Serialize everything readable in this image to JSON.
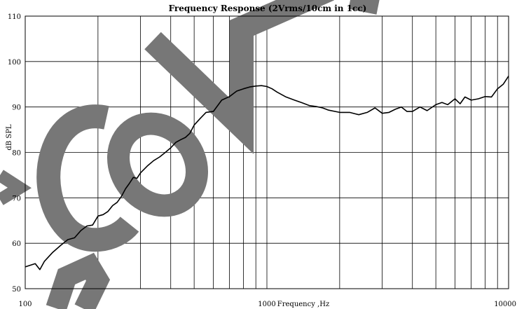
{
  "chart_data": {
    "type": "line",
    "title": "Frequency Response (2Vrms/10cm in 1cc)",
    "xlabel": "Frequency ,Hz",
    "ylabel": "dB SPL",
    "x_scale": "log",
    "xlim": [
      100,
      10000
    ],
    "ylim": [
      50,
      110
    ],
    "x_ticks": [
      100,
      1000,
      10000
    ],
    "x_tick_labels": [
      "100",
      "1000",
      "10000"
    ],
    "y_ticks": [
      50,
      60,
      70,
      80,
      90,
      100,
      110
    ],
    "y_tick_labels": [
      "50",
      "60",
      "70",
      "80",
      "90",
      "100",
      "110"
    ],
    "grid": true,
    "series": [
      {
        "x": [
          100,
          110,
          115,
          120,
          130,
          140,
          150,
          160,
          170,
          180,
          190,
          200,
          210,
          220,
          230,
          240,
          250,
          260,
          270,
          280,
          290,
          300,
          320,
          340,
          360,
          380,
          400,
          420,
          440,
          460,
          480,
          500,
          530,
          560,
          600,
          650,
          700,
          750,
          800,
          850,
          900,
          950,
          1000,
          1050,
          1100,
          1200,
          1300,
          1400,
          1500,
          1600,
          1700,
          1800,
          2000,
          2200,
          2400,
          2600,
          2800,
          3000,
          3200,
          3400,
          3600,
          3800,
          4000,
          4300,
          4600,
          5000,
          5300,
          5600,
          6000,
          6300,
          6600,
          7000,
          7500,
          8000,
          8500,
          9000,
          9500,
          10000
        ],
        "values": [
          54.8,
          55.5,
          54.2,
          56.0,
          58.0,
          59.5,
          60.8,
          61.2,
          62.8,
          63.8,
          64.0,
          66.0,
          66.3,
          67.0,
          68.3,
          69.0,
          70.3,
          72.0,
          73.2,
          74.5,
          74.3,
          75.5,
          77.0,
          78.2,
          79.0,
          80.0,
          81.0,
          82.2,
          82.8,
          83.3,
          84.2,
          86.0,
          87.5,
          88.8,
          89.0,
          91.5,
          92.3,
          93.5,
          94.0,
          94.4,
          94.6,
          94.7,
          94.5,
          94.0,
          93.3,
          92.2,
          91.5,
          90.9,
          90.3,
          90.1,
          89.8,
          89.3,
          88.8,
          88.8,
          88.3,
          88.8,
          89.8,
          88.6,
          88.8,
          89.5,
          90.0,
          89.0,
          89.0,
          90.0,
          89.2,
          90.5,
          91.0,
          90.5,
          91.8,
          90.7,
          92.2,
          91.5,
          91.8,
          92.3,
          92.2,
          94.0,
          95.0,
          96.8
        ]
      }
    ]
  },
  "watermark": {
    "text": "CONFIDENTIAL",
    "color": "#777777"
  }
}
